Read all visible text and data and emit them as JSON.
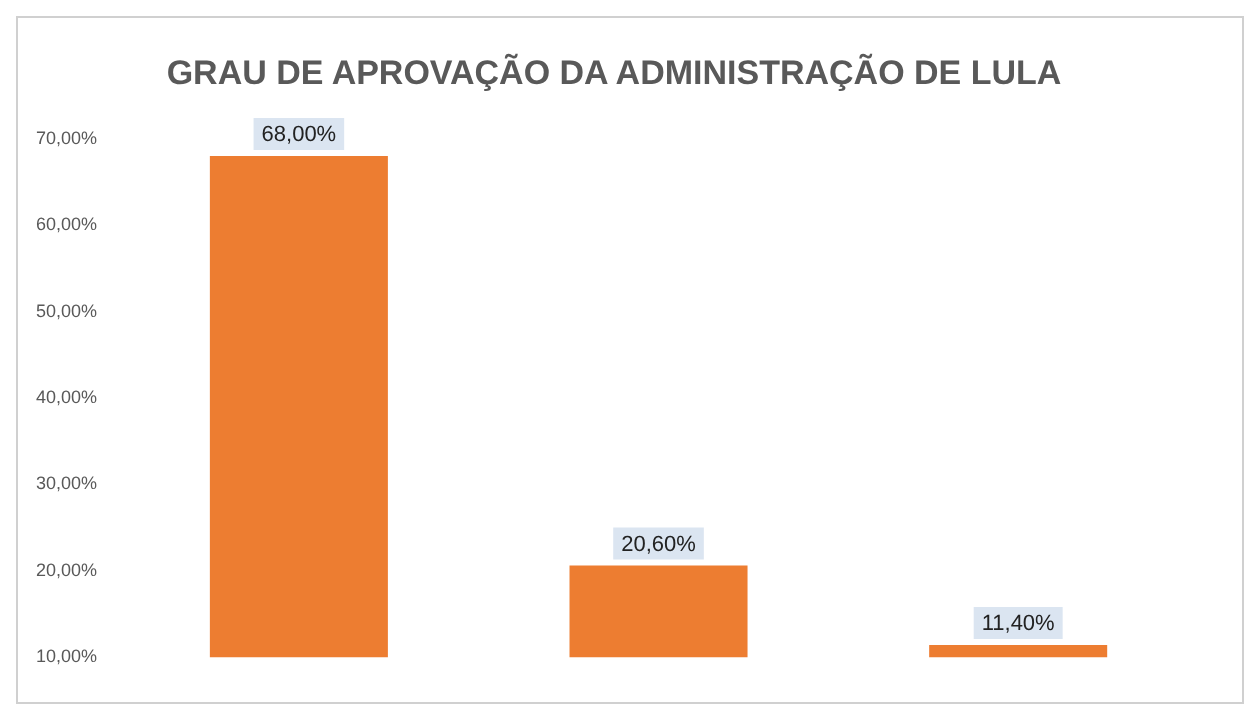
{
  "chart_data": {
    "type": "bar",
    "title": "GRAU DE APROVAÇÃO DA ADMINISTRAÇÃO DE LULA",
    "categories": [
      null,
      null,
      null
    ],
    "values": [
      68,
      20.6,
      11.4
    ],
    "value_labels": [
      "68,00%",
      "20,60%",
      "11,40%"
    ],
    "color": "#ed7d31",
    "ylim": [
      10,
      70
    ],
    "yticks": [
      {
        "value": 10,
        "label": "10,00%"
      },
      {
        "value": 20,
        "label": "20,00%"
      },
      {
        "value": 30,
        "label": "30,00%"
      },
      {
        "value": 40,
        "label": "40,00%"
      },
      {
        "value": 50,
        "label": "50,00%"
      },
      {
        "value": 60,
        "label": "60,00%"
      },
      {
        "value": 70,
        "label": "70,00%"
      }
    ],
    "grid": false,
    "legend": false
  }
}
